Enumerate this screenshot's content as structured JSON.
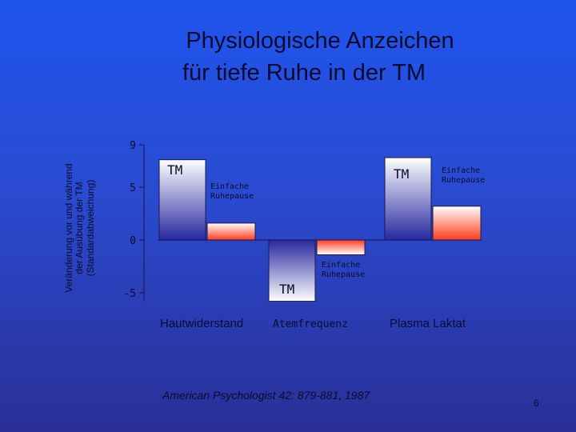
{
  "title_lines": [
    "Physiologische Anzeichen",
    "für tiefe Ruhe in der TM"
  ],
  "ylabel_lines": [
    "Veränderung vor und während",
    "der Ausübung der TM",
    "(Standardabweichung)"
  ],
  "source": "American Psychologist 42: 879-881, 1987",
  "page_number": "6",
  "colors": {
    "tm_bar_top": "#ffffff",
    "tm_bar_bottom": "#2828a0",
    "rest_bar_top": "#ffffff",
    "rest_bar_bottom": "#ff3c1e"
  },
  "chart_data": {
    "type": "bar",
    "categories": [
      "Hautwiderstand",
      "Atemfrequenz",
      "Plasma Laktat"
    ],
    "series": [
      {
        "name": "TM",
        "values": [
          7.6,
          -5.8,
          7.8
        ]
      },
      {
        "name": "Einfache Ruhepause",
        "values": [
          1.6,
          -1.4,
          3.2
        ]
      }
    ],
    "bar_labels": {
      "tm": "TM",
      "rest": [
        "Einfache",
        "Ruhepause"
      ]
    },
    "yticks": [
      9,
      5,
      0,
      -5
    ],
    "ylim": [
      -5.8,
      9
    ],
    "ylabel": "Veränderung vor und während der Ausübung der TM (Standardabweichung)",
    "grid": false
  }
}
